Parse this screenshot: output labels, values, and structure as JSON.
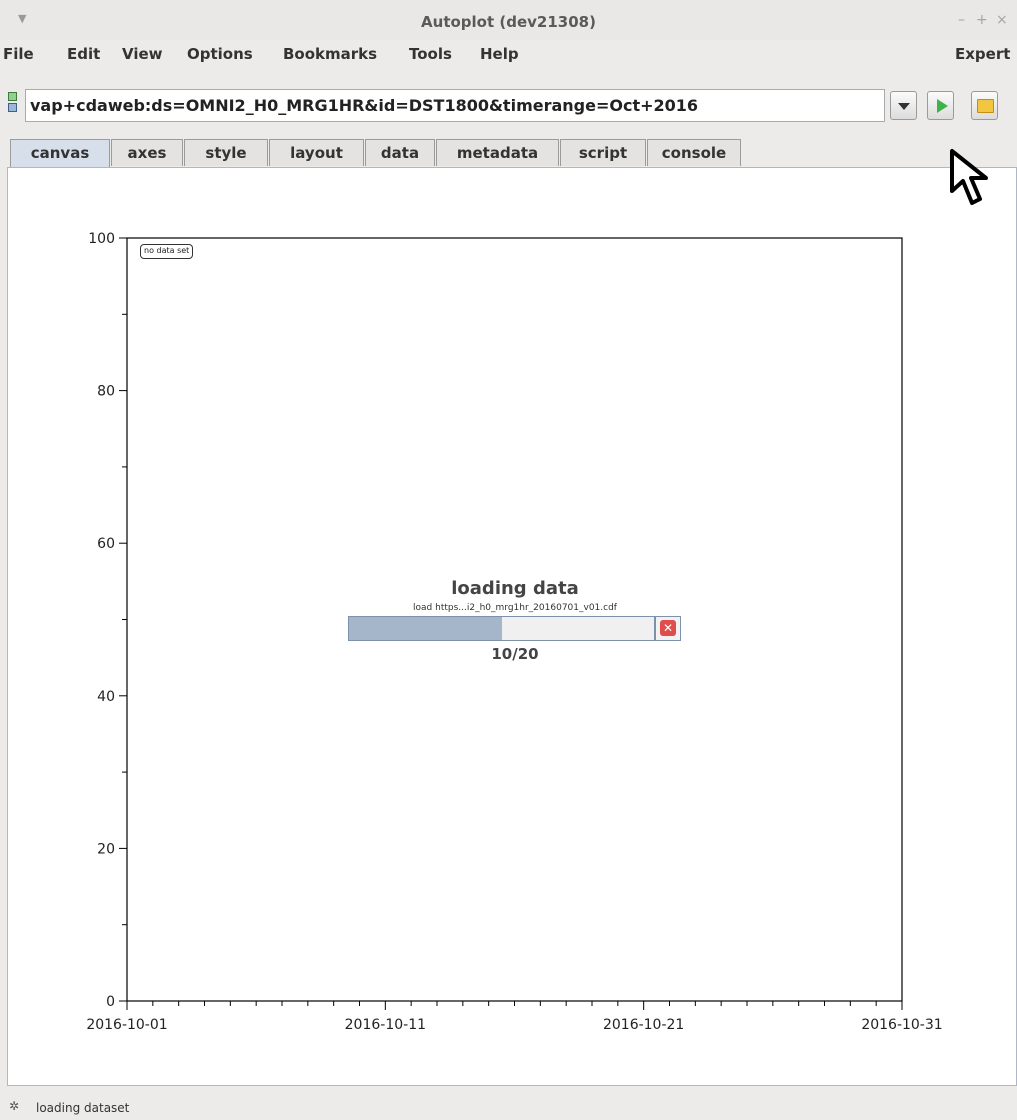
{
  "window": {
    "title": "Autoplot (dev21308)",
    "minimize": "–",
    "maximize": "+",
    "close": "×"
  },
  "menubar": {
    "items": [
      "File",
      "Edit",
      "View",
      "Options",
      "Bookmarks",
      "Tools",
      "Help"
    ],
    "right": "Expert"
  },
  "address": {
    "value": "vap+cdaweb:ds=OMNI2_H0_MRG1HR&id=DST1800&timerange=Oct+2016"
  },
  "tabs": [
    "canvas",
    "axes",
    "style",
    "layout",
    "data",
    "metadata",
    "script",
    "console"
  ],
  "active_tab": "canvas",
  "plot": {
    "message": "no data set",
    "y_ticks": [
      "0",
      "20",
      "40",
      "60",
      "80",
      "100"
    ],
    "x_ticks": [
      "2016-10-01",
      "2016-10-11",
      "2016-10-21",
      "2016-10-31"
    ]
  },
  "loading": {
    "title": "loading data",
    "file": "load https...i2_h0_mrg1hr_20160701_v01.cdf",
    "count": "10/20",
    "progress": 0.5
  },
  "status": {
    "text": "loading dataset"
  },
  "chart_data": {
    "type": "line",
    "series": [],
    "x_range": [
      "2016-10-01",
      "2016-10-31"
    ],
    "ylim": [
      0,
      100
    ],
    "x_ticks": [
      "2016-10-01",
      "2016-10-11",
      "2016-10-21",
      "2016-10-31"
    ],
    "y_ticks": [
      0,
      20,
      40,
      60,
      80,
      100
    ],
    "annotation": "no data set"
  }
}
